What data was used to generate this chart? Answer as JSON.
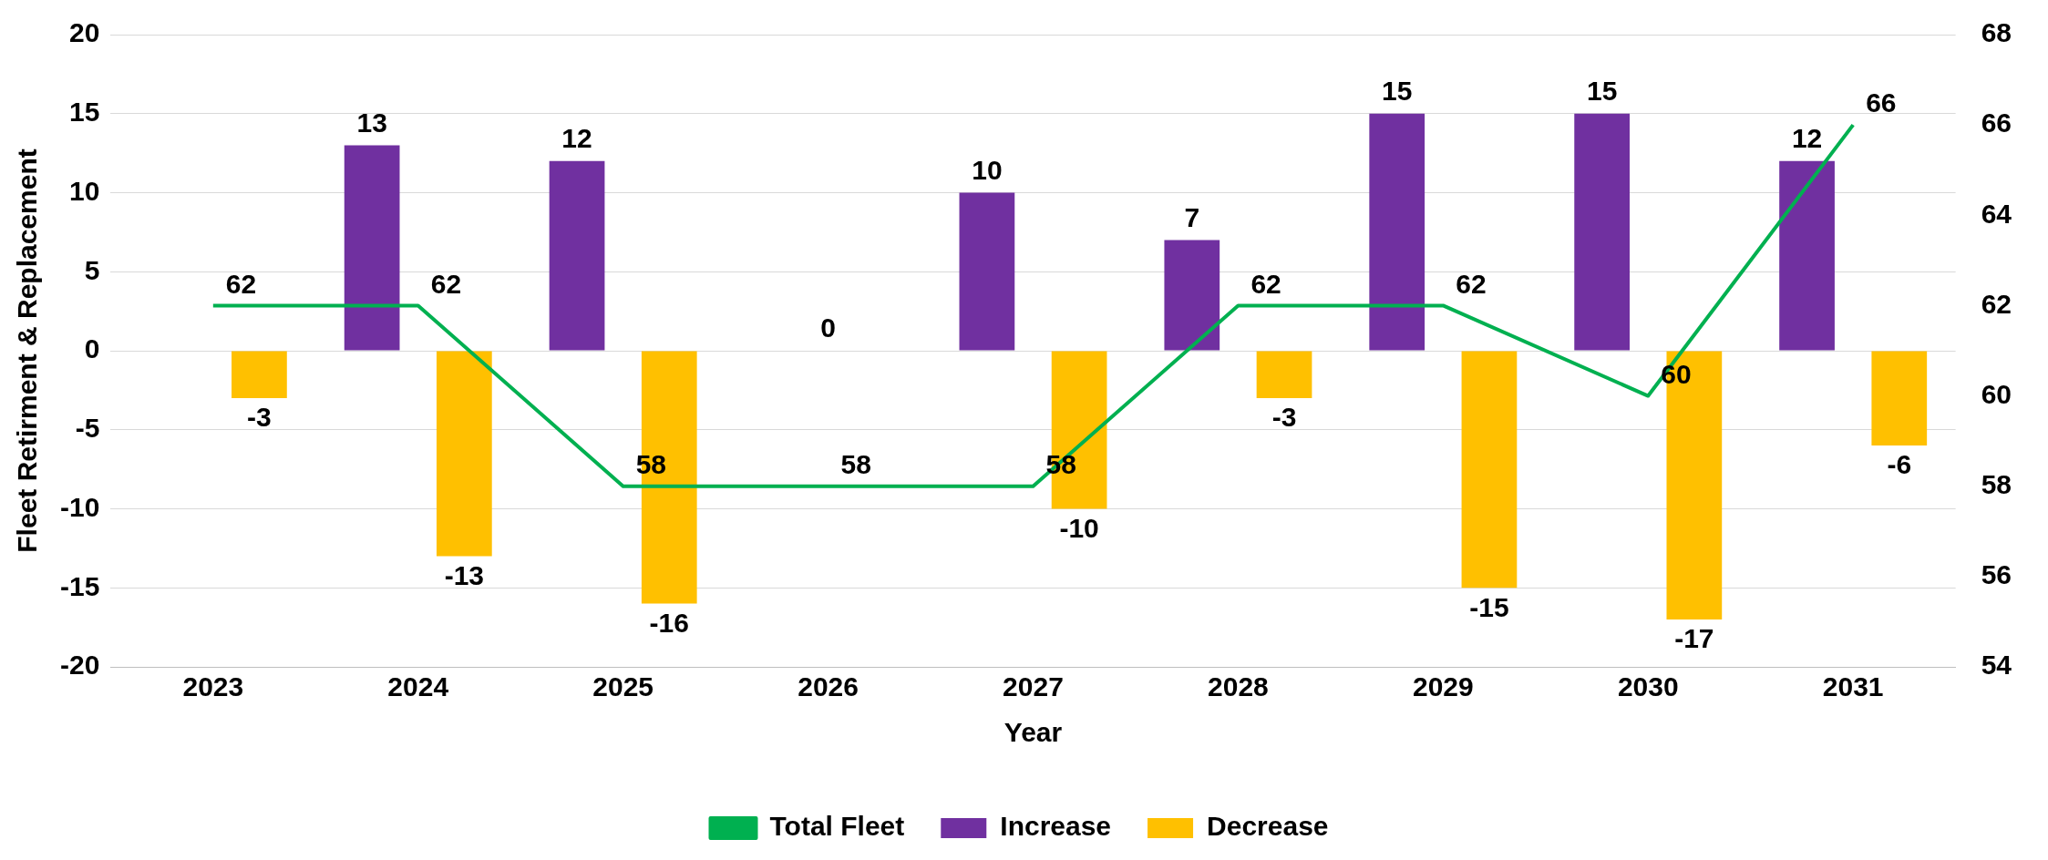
{
  "chart_data": {
    "type": "bar",
    "xlabel": "Year",
    "ylabel": "Fleet Retirment & Replacement",
    "categories": [
      "2023",
      "2024",
      "2025",
      "2026",
      "2027",
      "2028",
      "2029",
      "2030",
      "2031"
    ],
    "series": [
      {
        "name": "Increase",
        "color": "#7030a0",
        "values": [
          null,
          13,
          12,
          null,
          10,
          7,
          15,
          15,
          12
        ]
      },
      {
        "name": "Decrease",
        "color": "#ffc000",
        "values": [
          -3,
          -13,
          -16,
          null,
          -10,
          -3,
          -15,
          -17,
          -6
        ]
      },
      {
        "name": "Total Fleet",
        "type": "line",
        "axis": "y2",
        "color": "#00b050",
        "values": [
          62,
          62,
          58,
          58,
          58,
          62,
          62,
          60,
          66
        ]
      }
    ],
    "ylim": [
      -20,
      20
    ],
    "yticks": [
      -20,
      -15,
      -10,
      -5,
      0,
      5,
      10,
      15,
      20
    ],
    "y2lim": [
      54,
      68
    ],
    "y2ticks": [
      54,
      56,
      58,
      60,
      62,
      64,
      66,
      68
    ],
    "annotations": [
      "0"
    ],
    "grid": "y",
    "legend": "bottom",
    "data_labels": true,
    "marker": "none"
  }
}
